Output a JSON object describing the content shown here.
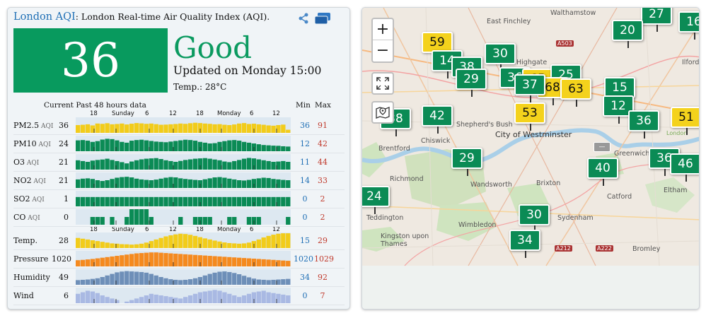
{
  "header": {
    "city": "London AQI",
    "subtitle": ": London Real-time Air Quality Index (AQI)."
  },
  "main": {
    "aqi": "36",
    "level": "Good",
    "updated": "Updated on Monday 15:00",
    "temp": "Temp.: 28°C"
  },
  "history": {
    "heading": "Current Past 48 hours data",
    "min_label": "Min",
    "max_label": "Max",
    "axis": [
      "18",
      "Sunday",
      "6",
      "12",
      "18",
      "Monday",
      "6",
      "12"
    ],
    "rows": [
      {
        "name": "PM2.5",
        "unit": "AQI",
        "current": "36",
        "min": "36",
        "max": "91",
        "color": "#f2cc1a",
        "values": [
          50,
          52,
          55,
          48,
          60,
          58,
          62,
          55,
          57,
          60,
          54,
          59,
          63,
          61,
          58,
          60,
          56,
          52,
          53,
          55,
          57,
          60,
          58,
          62,
          65,
          63,
          60,
          58,
          55,
          56,
          52,
          50,
          54,
          60,
          63,
          57,
          59,
          55,
          52,
          48,
          46,
          50,
          53,
          20
        ]
      },
      {
        "name": "PM10",
        "unit": "AQI",
        "current": "24",
        "min": "12",
        "max": "42",
        "color": "#0b8b55",
        "values": [
          70,
          72,
          68,
          60,
          65,
          75,
          80,
          78,
          70,
          60,
          55,
          68,
          72,
          74,
          70,
          66,
          62,
          60,
          58,
          62,
          66,
          70,
          74,
          72,
          68,
          60,
          55,
          50,
          52,
          60,
          65,
          70,
          72,
          68,
          60,
          55,
          50,
          45,
          40,
          38,
          36,
          35,
          32,
          30
        ]
      },
      {
        "name": "O3",
        "unit": "AQI",
        "current": "21",
        "min": "11",
        "max": "44",
        "color": "#0b8b55",
        "values": [
          60,
          55,
          50,
          58,
          62,
          65,
          70,
          62,
          55,
          48,
          40,
          52,
          60,
          66,
          70,
          72,
          74,
          68,
          60,
          55,
          50,
          56,
          62,
          66,
          70,
          72,
          74,
          70,
          65,
          60,
          52,
          48,
          55,
          62,
          70,
          75,
          72,
          66,
          60,
          55,
          50,
          52,
          55,
          50
        ]
      },
      {
        "name": "NO2",
        "unit": "AQI",
        "current": "21",
        "min": "14",
        "max": "33",
        "color": "#0b8b55",
        "values": [
          55,
          60,
          62,
          58,
          50,
          45,
          50,
          58,
          66,
          70,
          72,
          68,
          60,
          55,
          52,
          50,
          54,
          60,
          66,
          70,
          68,
          62,
          58,
          55,
          52,
          50,
          56,
          62,
          68,
          70,
          66,
          60,
          55,
          50,
          48,
          52,
          58,
          62,
          66,
          64,
          58,
          55,
          52,
          50
        ]
      },
      {
        "name": "SO2",
        "unit": "AQI",
        "current": "1",
        "min": "0",
        "max": "2",
        "color": "#0b8b55",
        "values": [
          60,
          60,
          60,
          60,
          60,
          60,
          60,
          60,
          60,
          60,
          60,
          60,
          60,
          60,
          60,
          60,
          60,
          60,
          60,
          60,
          60,
          60,
          60,
          60,
          60,
          60,
          60,
          60,
          60,
          60,
          60,
          60,
          60,
          60,
          60,
          60,
          60,
          60,
          60,
          60,
          60,
          60,
          60,
          60
        ]
      },
      {
        "name": "CO",
        "unit": "AQI",
        "current": "0",
        "min": "0",
        "max": "2",
        "color": "#0b8b55",
        "values": [
          0,
          0,
          0,
          50,
          50,
          50,
          0,
          50,
          0,
          0,
          50,
          100,
          100,
          100,
          100,
          50,
          0,
          0,
          0,
          0,
          0,
          50,
          0,
          0,
          50,
          50,
          50,
          50,
          0,
          0,
          0,
          50,
          50,
          0,
          0,
          50,
          50,
          50,
          0,
          0,
          0,
          0,
          0,
          50
        ]
      },
      {
        "name": "Temp.",
        "unit": "",
        "current": "28",
        "min": "15",
        "max": "29",
        "color": "#f2cc1a",
        "values": [
          65,
          60,
          55,
          50,
          45,
          40,
          35,
          30,
          28,
          25,
          24,
          22,
          24,
          28,
          35,
          45,
          55,
          65,
          75,
          82,
          88,
          92,
          90,
          85,
          78,
          70,
          62,
          55,
          48,
          42,
          36,
          32,
          30,
          28,
          30,
          35,
          45,
          55,
          68,
          78,
          86,
          92,
          95,
          95
        ]
      },
      {
        "name": "Pressure",
        "unit": "",
        "current": "1020",
        "min": "1020",
        "max": "1029",
        "color": "#f58a1f",
        "values": [
          40,
          42,
          45,
          48,
          52,
          56,
          60,
          64,
          68,
          72,
          76,
          80,
          84,
          86,
          88,
          90,
          90,
          88,
          86,
          84,
          82,
          80,
          78,
          76,
          74,
          72,
          70,
          68,
          66,
          64,
          62,
          60,
          58,
          56,
          54,
          52,
          50,
          48,
          46,
          44,
          42,
          40,
          38,
          36
        ]
      },
      {
        "name": "Humidity",
        "unit": "",
        "current": "49",
        "min": "34",
        "max": "92",
        "color": "#6e8fb8",
        "values": [
          30,
          32,
          34,
          38,
          42,
          50,
          60,
          70,
          80,
          85,
          88,
          86,
          84,
          82,
          78,
          70,
          60,
          50,
          42,
          36,
          32,
          30,
          32,
          36,
          42,
          50,
          60,
          70,
          78,
          84,
          86,
          82,
          76,
          68,
          58,
          48,
          40,
          34,
          32,
          30,
          32,
          34,
          36,
          38
        ]
      },
      {
        "name": "Wind",
        "unit": "",
        "current": "6",
        "min": "0",
        "max": "7",
        "color": "#a9b9e3",
        "values": [
          60,
          70,
          80,
          75,
          65,
          50,
          40,
          30,
          20,
          0,
          10,
          20,
          30,
          40,
          50,
          60,
          55,
          50,
          45,
          40,
          35,
          30,
          40,
          50,
          60,
          70,
          75,
          80,
          85,
          80,
          70,
          60,
          50,
          40,
          50,
          60,
          70,
          75,
          80,
          70,
          65,
          60,
          55,
          50
        ]
      }
    ]
  },
  "map": {
    "zoom_in": "+",
    "zoom_out": "−",
    "places": [
      {
        "name": "Walthamstow"
      },
      {
        "name": "East Finchley"
      },
      {
        "name": "Highgate"
      },
      {
        "name": "Shepherd's Bush"
      },
      {
        "name": "City of Westminster"
      },
      {
        "name": "Brentford"
      },
      {
        "name": "Chiswick"
      },
      {
        "name": "Richmond"
      },
      {
        "name": "Wandsworth"
      },
      {
        "name": "Brixton"
      },
      {
        "name": "Greenwich"
      },
      {
        "name": "Catford"
      },
      {
        "name": "Wimbledon"
      },
      {
        "name": "Sydenham"
      },
      {
        "name": "Kingston upon Thames"
      },
      {
        "name": "Bromley"
      },
      {
        "name": "Eltham"
      },
      {
        "name": "Teddington"
      },
      {
        "name": "Ilford"
      },
      {
        "name": "London"
      }
    ],
    "roads": [
      "A503",
      "A212",
      "A222",
      "A205"
    ],
    "markers": [
      {
        "value": "27",
        "level": "good"
      },
      {
        "value": "16",
        "level": "good"
      },
      {
        "value": "20",
        "level": "good"
      },
      {
        "value": "59",
        "level": "moderate"
      },
      {
        "value": "14",
        "level": "good"
      },
      {
        "value": "30",
        "level": "good"
      },
      {
        "value": "38",
        "level": "good"
      },
      {
        "value": "29",
        "level": "good"
      },
      {
        "value": "36",
        "level": "good"
      },
      {
        "value": "65",
        "level": "moderate"
      },
      {
        "value": "25",
        "level": "good"
      },
      {
        "value": "68",
        "level": "moderate"
      },
      {
        "value": "63",
        "level": "moderate"
      },
      {
        "value": "37",
        "level": "good"
      },
      {
        "value": "15",
        "level": "good"
      },
      {
        "value": "38",
        "level": "good"
      },
      {
        "value": "42",
        "level": "good"
      },
      {
        "value": "53",
        "level": "moderate"
      },
      {
        "value": "12",
        "level": "good"
      },
      {
        "value": "36",
        "level": "good"
      },
      {
        "value": "51",
        "level": "moderate"
      },
      {
        "value": "29",
        "level": "good"
      },
      {
        "value": "40",
        "level": "good"
      },
      {
        "value": "36",
        "level": "good"
      },
      {
        "value": "46",
        "level": "good"
      },
      {
        "value": "24",
        "level": "good"
      },
      {
        "value": "30",
        "level": "good"
      },
      {
        "value": "34",
        "level": "good"
      }
    ]
  }
}
